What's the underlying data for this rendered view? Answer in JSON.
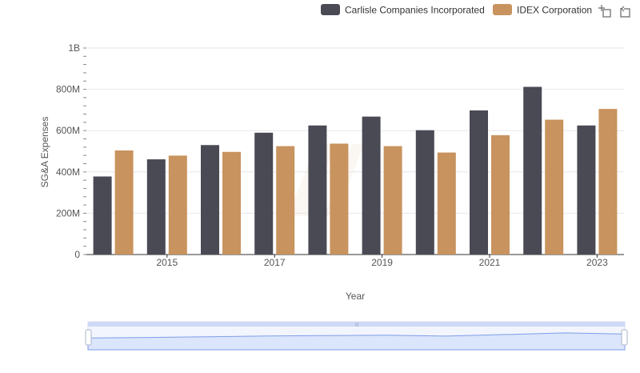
{
  "chart_data": {
    "type": "bar",
    "title": "",
    "xlabel": "Year",
    "ylabel": "SG&A Expenses",
    "x_ticks": [
      "2015",
      "2017",
      "2019",
      "2021",
      "2023"
    ],
    "y_ticks": [
      "0",
      "200M",
      "400M",
      "600M",
      "800M",
      "1B"
    ],
    "ylim": [
      0,
      1000000000
    ],
    "grid": true,
    "legend_position": "top-right",
    "categories": [
      "2014",
      "2015",
      "2016",
      "2017",
      "2018",
      "2019",
      "2020",
      "2021",
      "2022",
      "2023"
    ],
    "series": [
      {
        "name": "Carlisle Companies Incorporated",
        "color": "#4a4a55",
        "values": [
          378000000,
          461000000,
          530000000,
          590000000,
          625000000,
          668000000,
          602000000,
          698000000,
          812000000,
          625000000
        ]
      },
      {
        "name": "IDEX Corporation",
        "color": "#c8935e",
        "values": [
          504000000,
          479000000,
          497000000,
          525000000,
          537000000,
          525000000,
          494000000,
          578000000,
          653000000,
          705000000
        ]
      }
    ]
  },
  "toolbar": {
    "icons": [
      "zoom-icon",
      "reset-icon"
    ]
  },
  "navigator": {
    "line_color": "#7f9ee8",
    "fill_color": "#dbe5fb",
    "handle_label": "|||"
  }
}
